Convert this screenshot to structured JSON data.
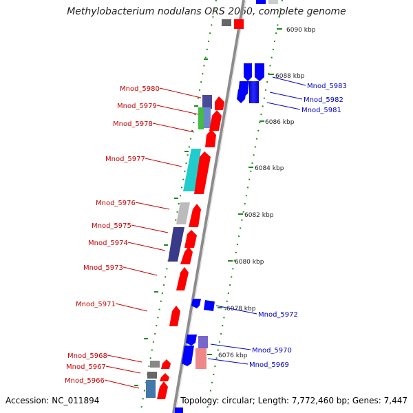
{
  "title": "Methylobacterium nodulans ORS 2060, complete genome",
  "accession": "Accession: NC_011894",
  "topology": "Topology: circular; Length: 7,772,460 bp; Genes: 7,447",
  "colors": {
    "backbone": "#8c8c8c",
    "tick": "#1a8a1a",
    "label_left": "#cc0000",
    "label_right": "#0000cc",
    "forward_arrow": "#ff0000",
    "reverse_arrow": "#0000ff"
  },
  "scale_ticks": [
    {
      "label": "6090 kbp",
      "kbp": 6090
    },
    {
      "label": "6088 kbp",
      "kbp": 6088
    },
    {
      "label": "6086 kbp",
      "kbp": 6086
    },
    {
      "label": "6084 kbp",
      "kbp": 6084
    },
    {
      "label": "6082 kbp",
      "kbp": 6082
    },
    {
      "label": "6080 kbp",
      "kbp": 6080
    },
    {
      "label": "6078 kbp",
      "kbp": 6078
    },
    {
      "label": "6076 kbp",
      "kbp": 6076
    }
  ],
  "genes_left": [
    {
      "label": "Mnod_5980",
      "color": "#4a4a9a"
    },
    {
      "label": "Mnod_5979",
      "color": "#44bb44"
    },
    {
      "label": "Mnod_5978",
      "color": "#ff0000"
    },
    {
      "label": "Mnod_5977",
      "color": "#22cccc"
    },
    {
      "label": "Mnod_5976",
      "color": "#bbbbbb"
    },
    {
      "label": "Mnod_5975",
      "color": "#3a3a8a"
    },
    {
      "label": "Mnod_5974",
      "color": "#ff0000"
    },
    {
      "label": "Mnod_5973",
      "color": "#ff0000"
    },
    {
      "label": "Mnod_5971",
      "color": "#ff0000"
    },
    {
      "label": "Mnod_5968",
      "color": "#888888"
    },
    {
      "label": "Mnod_5967",
      "color": "#666666"
    },
    {
      "label": "Mnod_5966",
      "color": "#4477aa"
    }
  ],
  "genes_right": [
    {
      "label": "Mnod_5983",
      "color": "#0000ff"
    },
    {
      "label": "Mnod_5982",
      "color": "#0000ff"
    },
    {
      "label": "Mnod_5981",
      "color": "#0000ff"
    },
    {
      "label": "Mnod_5972",
      "color": "#0000ff"
    },
    {
      "label": "Mnod_5970",
      "color": "#7766cc"
    },
    {
      "label": "Mnod_5969",
      "color": "#ee8888"
    }
  ]
}
